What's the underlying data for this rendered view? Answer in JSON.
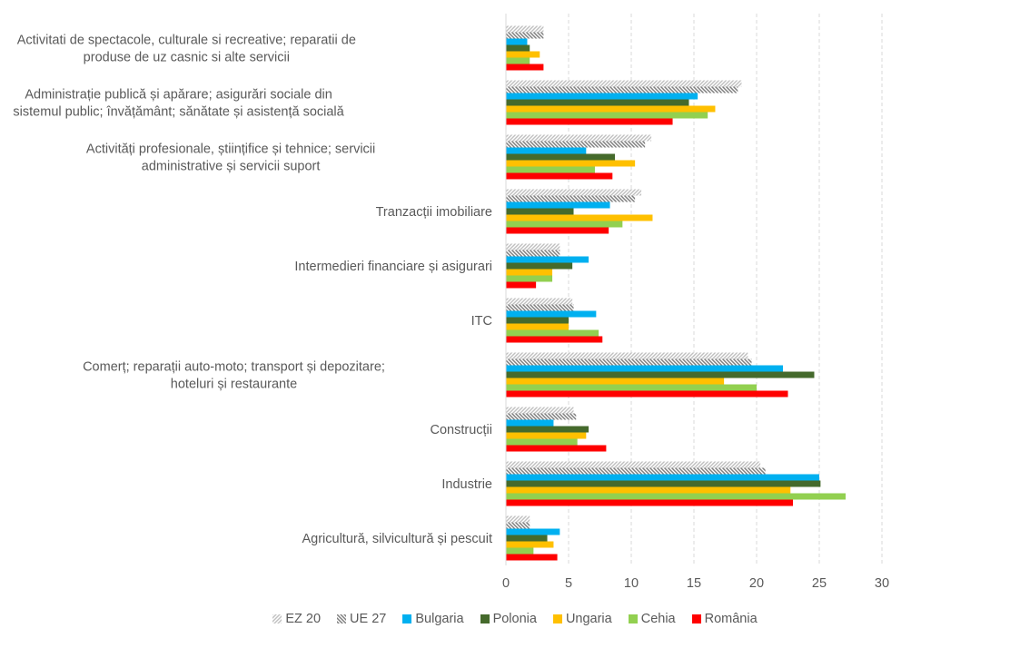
{
  "chart_data": {
    "type": "bar",
    "orientation": "horizontal",
    "title": "",
    "xlabel": "",
    "ylabel": "",
    "xlim": [
      0,
      30
    ],
    "xticks": [
      0,
      5,
      10,
      15,
      20,
      25,
      30
    ],
    "grid": true,
    "legend_position": "bottom",
    "categories": [
      "Activitati de spectacole, culturale si recreative; reparatii de produse de uz casnic si alte servicii",
      "Administrație publică și apărare; asigurări sociale din sistemul public; învățământ; sănătate și asistență socială",
      "Activități profesionale, științifice și tehnice; servicii administrative și servicii suport",
      "Tranzacții imobiliare",
      "Intermedieri financiare și asigurari",
      "ITC",
      "Comerț; reparații auto-moto; transport și depozitare; hoteluri și restaurante",
      "Construcții",
      "Industrie",
      "Agricultură, silvicultură și pescuit"
    ],
    "category_label_lines": [
      [
        "Activitati de spectacole, culturale si recreative; reparatii de",
        "produse de uz casnic si alte servicii"
      ],
      [
        "Administrație publică și apărare; asigurări sociale din",
        "sistemul public; învățământ; sănătate și asistență socială"
      ],
      [
        "Activități profesionale, științifice și tehnice; servicii",
        "administrative și servicii suport"
      ],
      [
        "Tranzacții imobiliare"
      ],
      [
        "Intermedieri financiare și asigurari"
      ],
      [
        "ITC"
      ],
      [
        "Comerț; reparații auto-moto; transport și depozitare;",
        "hoteluri și restaurante"
      ],
      [
        "Construcții"
      ],
      [
        "Industrie"
      ],
      [
        "Agricultură, silvicultură și pescuit"
      ]
    ],
    "series": [
      {
        "name": "EZ 20",
        "color": "#bfbfbf",
        "pattern": "light-diagonal",
        "values": [
          3.0,
          18.8,
          11.6,
          10.8,
          4.3,
          5.3,
          19.3,
          5.4,
          20.3,
          1.9
        ]
      },
      {
        "name": "UE 27",
        "color": "#7f7f7f",
        "pattern": "dark-backdiagonal",
        "values": [
          3.0,
          18.5,
          11.1,
          10.3,
          4.3,
          5.4,
          19.6,
          5.6,
          20.7,
          1.9
        ]
      },
      {
        "name": "Bulgaria",
        "color": "#00b0f0",
        "values": [
          1.7,
          15.3,
          6.4,
          8.3,
          6.6,
          7.2,
          22.1,
          3.8,
          25.0,
          4.3
        ]
      },
      {
        "name": "Polonia",
        "color": "#456a2c",
        "values": [
          1.9,
          14.6,
          8.7,
          5.4,
          5.3,
          5.0,
          24.6,
          6.6,
          25.1,
          3.3
        ]
      },
      {
        "name": "Ungaria",
        "color": "#ffc000",
        "values": [
          2.7,
          16.7,
          10.3,
          11.7,
          3.7,
          5.0,
          17.4,
          6.4,
          22.7,
          3.8
        ]
      },
      {
        "name": "Cehia",
        "color": "#92d050",
        "values": [
          1.9,
          16.1,
          7.1,
          9.3,
          3.7,
          7.4,
          20.0,
          5.7,
          27.1,
          2.2
        ]
      },
      {
        "name": "România",
        "color": "#ff0000",
        "values": [
          3.0,
          13.3,
          8.5,
          8.2,
          2.4,
          7.7,
          22.5,
          8.0,
          22.9,
          4.1
        ]
      }
    ]
  }
}
